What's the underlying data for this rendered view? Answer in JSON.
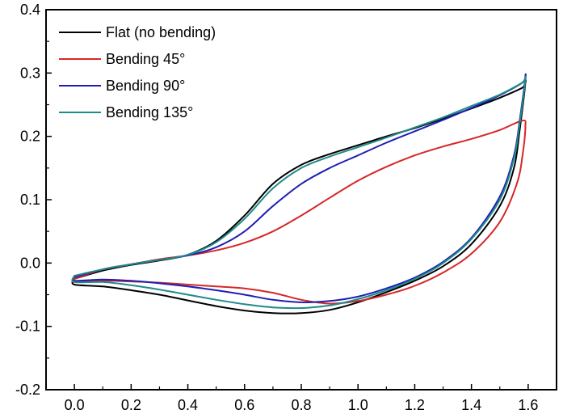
{
  "chart_data": {
    "type": "line",
    "title": "",
    "xlabel": "",
    "ylabel": "",
    "xlim": [
      -0.1,
      1.7
    ],
    "ylim": [
      -0.2,
      0.4
    ],
    "xticks": [
      0.0,
      0.2,
      0.4,
      0.6,
      0.8,
      1.0,
      1.2,
      1.4,
      1.6
    ],
    "yticks": [
      -0.2,
      -0.1,
      0.0,
      0.1,
      0.2,
      0.3,
      0.4
    ],
    "xtick_labels": [
      "0.0",
      "0.2",
      "0.4",
      "0.6",
      "0.8",
      "1.0",
      "1.2",
      "1.4",
      "1.6"
    ],
    "ytick_labels": [
      "-0.2",
      "-0.1",
      "0.0",
      "0.1",
      "0.2",
      "0.3",
      "0.4"
    ],
    "grid": false,
    "legend_position": "top-left",
    "series": [
      {
        "name": "Flat (no bending)",
        "color": "#000000",
        "anodic": {
          "x": [
            0.0,
            0.1,
            0.2,
            0.3,
            0.4,
            0.5,
            0.6,
            0.7,
            0.8,
            0.9,
            1.0,
            1.1,
            1.2,
            1.3,
            1.4,
            1.5,
            1.58
          ],
          "y": [
            -0.025,
            -0.012,
            -0.003,
            0.004,
            0.013,
            0.035,
            0.075,
            0.125,
            0.155,
            0.172,
            0.186,
            0.2,
            0.213,
            0.228,
            0.244,
            0.261,
            0.277
          ]
        },
        "cathodic": {
          "x": [
            1.59,
            1.57,
            1.55,
            1.5,
            1.4,
            1.3,
            1.2,
            1.1,
            1.0,
            0.9,
            0.8,
            0.7,
            0.6,
            0.5,
            0.4,
            0.3,
            0.2,
            0.1,
            0.0
          ],
          "y": [
            0.285,
            0.21,
            0.15,
            0.09,
            0.03,
            -0.005,
            -0.028,
            -0.046,
            -0.062,
            -0.074,
            -0.079,
            -0.079,
            -0.075,
            -0.068,
            -0.059,
            -0.05,
            -0.043,
            -0.037,
            -0.034
          ]
        }
      },
      {
        "name": "Bending 45°",
        "color": "#d62728",
        "anodic": {
          "x": [
            0.0,
            0.1,
            0.2,
            0.3,
            0.4,
            0.5,
            0.6,
            0.7,
            0.8,
            0.9,
            1.0,
            1.1,
            1.2,
            1.3,
            1.4,
            1.5,
            1.58
          ],
          "y": [
            -0.025,
            -0.01,
            -0.002,
            0.006,
            0.012,
            0.02,
            0.032,
            0.05,
            0.075,
            0.103,
            0.13,
            0.152,
            0.17,
            0.184,
            0.196,
            0.21,
            0.225
          ]
        },
        "cathodic": {
          "x": [
            1.59,
            1.58,
            1.56,
            1.5,
            1.4,
            1.3,
            1.2,
            1.1,
            1.0,
            0.9,
            0.8,
            0.7,
            0.6,
            0.5,
            0.4,
            0.3,
            0.2,
            0.1,
            0.0
          ],
          "y": [
            0.215,
            0.17,
            0.125,
            0.065,
            0.015,
            -0.015,
            -0.036,
            -0.05,
            -0.06,
            -0.064,
            -0.058,
            -0.047,
            -0.04,
            -0.037,
            -0.034,
            -0.031,
            -0.029,
            -0.028,
            -0.03
          ]
        }
      },
      {
        "name": "Bending 90°",
        "color": "#1f1fb4",
        "anodic": {
          "x": [
            0.0,
            0.1,
            0.2,
            0.3,
            0.4,
            0.5,
            0.6,
            0.7,
            0.8,
            0.9,
            1.0,
            1.1,
            1.2,
            1.3,
            1.4,
            1.5,
            1.58
          ],
          "y": [
            -0.022,
            -0.01,
            -0.002,
            0.005,
            0.012,
            0.025,
            0.05,
            0.09,
            0.125,
            0.15,
            0.17,
            0.19,
            0.208,
            0.226,
            0.245,
            0.265,
            0.285
          ]
        },
        "cathodic": {
          "x": [
            1.59,
            1.57,
            1.55,
            1.5,
            1.4,
            1.3,
            1.2,
            1.1,
            1.0,
            0.9,
            0.8,
            0.7,
            0.6,
            0.5,
            0.4,
            0.3,
            0.2,
            0.1,
            0.0
          ],
          "y": [
            0.295,
            0.225,
            0.17,
            0.105,
            0.04,
            0.002,
            -0.023,
            -0.04,
            -0.053,
            -0.06,
            -0.062,
            -0.058,
            -0.05,
            -0.043,
            -0.037,
            -0.032,
            -0.028,
            -0.026,
            -0.028
          ]
        }
      },
      {
        "name": "Bending 135°",
        "color": "#1f8a8a",
        "anodic": {
          "x": [
            0.0,
            0.1,
            0.2,
            0.3,
            0.4,
            0.5,
            0.6,
            0.7,
            0.8,
            0.9,
            1.0,
            1.1,
            1.2,
            1.3,
            1.4,
            1.5,
            1.58
          ],
          "y": [
            -0.02,
            -0.01,
            -0.002,
            0.005,
            0.013,
            0.033,
            0.07,
            0.118,
            0.15,
            0.168,
            0.183,
            0.198,
            0.214,
            0.23,
            0.248,
            0.266,
            0.285
          ]
        },
        "cathodic": {
          "x": [
            1.59,
            1.57,
            1.55,
            1.5,
            1.4,
            1.3,
            1.2,
            1.1,
            1.0,
            0.9,
            0.8,
            0.7,
            0.6,
            0.5,
            0.4,
            0.3,
            0.2,
            0.1,
            0.0
          ],
          "y": [
            0.29,
            0.22,
            0.165,
            0.1,
            0.038,
            0.0,
            -0.025,
            -0.043,
            -0.057,
            -0.067,
            -0.071,
            -0.07,
            -0.065,
            -0.058,
            -0.05,
            -0.042,
            -0.035,
            -0.03,
            -0.03
          ]
        }
      }
    ]
  }
}
